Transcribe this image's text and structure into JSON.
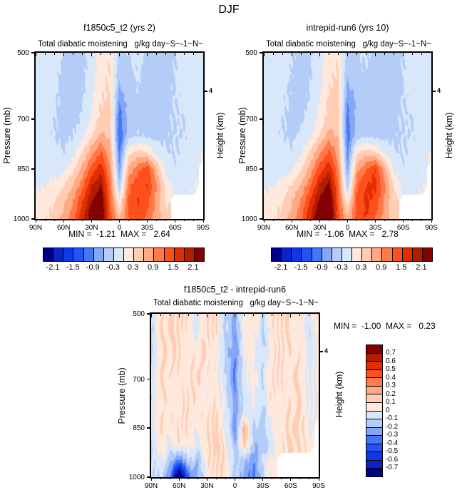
{
  "page": {
    "title": "DJF"
  },
  "palette": [
    "#000087",
    "#0b24c8",
    "#1038e8",
    "#2253f5",
    "#4476f8",
    "#84a6f8",
    "#b4ccf8",
    "#d8e8fa",
    "#ffe9dc",
    "#ffcdb4",
    "#ffaa84",
    "#ff7a48",
    "#ff4f1a",
    "#e22d00",
    "#b21e00",
    "#850000"
  ],
  "chart_data": [
    {
      "id": "a",
      "type": "heatmap",
      "title": "f1850c5_t2 (yrs 2)",
      "subtitle_left": "Total diabatic moistening",
      "subtitle_right": "g/kg day~S~-1~N~",
      "stats": "MIN =  -1.21  MAX =   2.64",
      "ylabel": "Pressure (mb)",
      "ylabel_right": "Height (km)",
      "height_tick_label": "4",
      "height_tick_pressure": 616,
      "x_tick_labels": [
        "90N",
        "60N",
        "30N",
        "0",
        "30S",
        "60S",
        "90S"
      ],
      "x_major_deg": [
        90,
        60,
        30,
        0,
        -30,
        -60,
        -90
      ],
      "x_minor_step_deg": 10,
      "y_tick_labels": [
        "500",
        "700",
        "850",
        "1000"
      ],
      "y_tick_values": [
        500,
        700,
        850,
        1000
      ],
      "x_range": [
        90,
        -90
      ],
      "y_range": [
        500,
        1000
      ],
      "contour": {
        "min": -2.1,
        "max": 2.1,
        "step": 0.3
      },
      "colorbar_labels": [
        "-2.1",
        "-1.5",
        "-0.9",
        "-0.3",
        "0.3",
        "0.9",
        "1.5",
        "2.1"
      ],
      "lats": [
        90,
        80,
        70,
        60,
        50,
        40,
        30,
        20,
        10,
        0,
        -10,
        -20,
        -30,
        -40,
        -50,
        -60,
        -70,
        -80,
        -90
      ],
      "levels": [
        500,
        550,
        600,
        650,
        700,
        750,
        800,
        850,
        900,
        950,
        1000
      ],
      "values": [
        [
          -0.15,
          -0.2,
          -0.2,
          -0.3,
          -0.5,
          -0.4,
          -0.15,
          0.2,
          0.25,
          -0.45,
          -0.3,
          -0.2,
          -0.35,
          -0.5,
          -0.5,
          -0.3,
          -0.15,
          -0.1,
          -0.1
        ],
        [
          -0.15,
          -0.2,
          -0.2,
          -0.35,
          -0.5,
          -0.4,
          -0.15,
          0.2,
          0.3,
          -0.5,
          -0.35,
          -0.25,
          -0.4,
          -0.55,
          -0.5,
          -0.3,
          -0.2,
          -0.1,
          -0.1
        ],
        [
          -0.15,
          -0.2,
          -0.25,
          -0.4,
          -0.5,
          -0.35,
          -0.1,
          0.25,
          0.3,
          -0.6,
          -0.4,
          -0.3,
          -0.45,
          -0.5,
          -0.4,
          -0.3,
          -0.2,
          -0.15,
          -0.1
        ],
        [
          -0.15,
          -0.2,
          -0.25,
          -0.4,
          -0.45,
          -0.3,
          -0.05,
          0.3,
          0.35,
          -0.9,
          -0.45,
          -0.35,
          -0.5,
          -0.45,
          -0.35,
          -0.3,
          -0.25,
          -0.15,
          -0.1
        ],
        [
          -0.15,
          -0.2,
          -0.3,
          -0.45,
          -0.4,
          -0.25,
          0.05,
          0.4,
          0.4,
          -1.1,
          -0.5,
          -0.4,
          -0.45,
          -0.4,
          -0.35,
          -0.3,
          -0.3,
          -0.15,
          -0.1
        ],
        [
          -0.15,
          -0.2,
          -0.3,
          -0.4,
          -0.3,
          -0.1,
          0.3,
          0.7,
          0.5,
          -1.2,
          -0.4,
          -0.3,
          -0.35,
          -0.4,
          -0.35,
          -0.3,
          -0.3,
          -0.15,
          -0.05
        ],
        [
          -0.1,
          -0.15,
          -0.25,
          -0.3,
          -0.1,
          0.3,
          0.8,
          1.2,
          0.7,
          -1.0,
          0.2,
          0.4,
          0.3,
          -0.1,
          -0.3,
          -0.3,
          -0.25,
          -0.1,
          0.0
        ],
        [
          -0.1,
          -0.1,
          -0.15,
          -0.1,
          0.2,
          0.7,
          1.3,
          1.7,
          0.9,
          -0.8,
          0.7,
          1.1,
          1.4,
          0.6,
          -0.1,
          -0.25,
          -0.2,
          -0.05,
          null
        ],
        [
          -0.05,
          0.0,
          0.1,
          0.3,
          0.6,
          1.1,
          1.8,
          2.1,
          1.1,
          -0.5,
          1.1,
          1.4,
          1.5,
          0.9,
          0.2,
          -0.15,
          -0.1,
          0.0,
          null
        ],
        [
          0.05,
          0.15,
          0.3,
          0.55,
          0.9,
          1.5,
          2.1,
          2.4,
          1.2,
          0.1,
          1.3,
          1.5,
          1.3,
          0.8,
          0.3,
          null,
          null,
          null,
          null
        ],
        [
          0.1,
          0.25,
          0.45,
          0.7,
          1.1,
          1.7,
          2.4,
          2.6,
          1.3,
          0.6,
          1.2,
          1.4,
          1.1,
          0.7,
          0.4,
          null,
          null,
          null,
          null
        ]
      ]
    },
    {
      "id": "b",
      "type": "heatmap",
      "title": "intrepid-run6 (yrs 10)",
      "subtitle_left": "Total diabatic moistening",
      "subtitle_right": "g/kg day~S~-1~N~",
      "stats": "MIN =  -1.06  MAX =   2.78",
      "ylabel": "Pressure (mb)",
      "ylabel_right": "Height (km)",
      "height_tick_label": "4",
      "height_tick_pressure": 616,
      "x_tick_labels": [
        "90N",
        "60N",
        "30N",
        "0",
        "30S",
        "60S",
        "90S"
      ],
      "x_major_deg": [
        90,
        60,
        30,
        0,
        -30,
        -60,
        -90
      ],
      "x_minor_step_deg": 10,
      "y_tick_labels": [
        "500",
        "700",
        "850",
        "1000"
      ],
      "y_tick_values": [
        500,
        700,
        850,
        1000
      ],
      "x_range": [
        90,
        -90
      ],
      "y_range": [
        500,
        1000
      ],
      "contour": {
        "min": -2.1,
        "max": 2.1,
        "step": 0.3
      },
      "colorbar_labels": [
        "-2.1",
        "-1.5",
        "-0.9",
        "-0.3",
        "0.3",
        "0.9",
        "1.5",
        "2.1"
      ],
      "lats": [
        90,
        80,
        70,
        60,
        50,
        40,
        30,
        20,
        10,
        0,
        -10,
        -20,
        -30,
        -40,
        -50,
        -60,
        -70,
        -80,
        -90
      ],
      "levels": [
        500,
        550,
        600,
        650,
        700,
        750,
        800,
        850,
        900,
        950,
        1000
      ],
      "values": [
        [
          -0.15,
          -0.2,
          -0.2,
          -0.25,
          -0.45,
          -0.35,
          -0.1,
          0.2,
          0.25,
          -0.5,
          -0.35,
          -0.25,
          -0.4,
          -0.5,
          -0.45,
          -0.3,
          -0.15,
          -0.1,
          -0.1
        ],
        [
          -0.15,
          -0.2,
          -0.2,
          -0.3,
          -0.45,
          -0.35,
          -0.1,
          0.25,
          0.3,
          -0.55,
          -0.4,
          -0.3,
          -0.45,
          -0.55,
          -0.5,
          -0.3,
          -0.2,
          -0.1,
          -0.1
        ],
        [
          -0.15,
          -0.2,
          -0.25,
          -0.35,
          -0.45,
          -0.3,
          -0.05,
          0.3,
          0.35,
          -0.65,
          -0.45,
          -0.35,
          -0.5,
          -0.55,
          -0.45,
          -0.3,
          -0.2,
          -0.15,
          -0.1
        ],
        [
          -0.15,
          -0.2,
          -0.25,
          -0.35,
          -0.4,
          -0.25,
          0.0,
          0.35,
          0.4,
          -0.9,
          -0.5,
          -0.4,
          -0.5,
          -0.5,
          -0.4,
          -0.3,
          -0.25,
          -0.15,
          -0.1
        ],
        [
          -0.15,
          -0.2,
          -0.3,
          -0.4,
          -0.35,
          -0.2,
          0.1,
          0.45,
          0.45,
          -1.05,
          -0.5,
          -0.45,
          -0.5,
          -0.45,
          -0.35,
          -0.3,
          -0.3,
          -0.15,
          -0.1
        ],
        [
          -0.15,
          -0.2,
          -0.3,
          -0.35,
          -0.25,
          -0.05,
          0.35,
          0.75,
          0.55,
          -1.05,
          -0.45,
          -0.35,
          -0.4,
          -0.4,
          -0.35,
          -0.3,
          -0.3,
          -0.15,
          -0.05
        ],
        [
          -0.1,
          -0.15,
          -0.25,
          -0.25,
          -0.05,
          0.35,
          0.85,
          1.25,
          0.75,
          -0.95,
          0.25,
          0.45,
          0.35,
          -0.05,
          -0.3,
          -0.3,
          -0.25,
          -0.1,
          0.0
        ],
        [
          -0.1,
          -0.1,
          -0.15,
          -0.05,
          0.25,
          0.75,
          1.35,
          1.75,
          0.95,
          -0.75,
          0.75,
          1.15,
          1.5,
          0.7,
          -0.05,
          -0.25,
          -0.2,
          -0.05,
          null
        ],
        [
          -0.05,
          0.0,
          0.1,
          0.35,
          0.65,
          1.15,
          1.85,
          2.2,
          1.15,
          -0.45,
          1.15,
          1.5,
          1.6,
          0.95,
          0.25,
          -0.1,
          -0.1,
          0.0,
          null
        ],
        [
          0.05,
          0.15,
          0.3,
          0.6,
          0.95,
          1.55,
          2.2,
          2.5,
          1.25,
          0.15,
          1.35,
          1.6,
          1.4,
          0.85,
          0.35,
          null,
          null,
          null,
          null
        ],
        [
          0.1,
          0.25,
          0.45,
          0.75,
          1.15,
          1.8,
          2.5,
          2.75,
          1.35,
          0.65,
          1.3,
          1.5,
          1.2,
          0.75,
          0.4,
          null,
          null,
          null,
          null
        ]
      ]
    },
    {
      "id": "c",
      "type": "heatmap",
      "title": "f1850c5_t2 - intrepid-run6",
      "subtitle_left": "Total diabatic moistening",
      "subtitle_right": "g/kg day~S~-1~N~",
      "stats": "MIN =  -1.00  MAX =   0.23",
      "ylabel": "Pressure (mb)",
      "ylabel_right": "Height (km)",
      "height_tick_label": "4",
      "height_tick_pressure": 616,
      "x_tick_labels": [
        "90N",
        "60N",
        "30N",
        "0",
        "30S",
        "60S",
        "90S"
      ],
      "x_major_deg": [
        90,
        60,
        30,
        0,
        -30,
        -60,
        -90
      ],
      "x_minor_step_deg": 10,
      "y_tick_labels": [
        "500",
        "700",
        "850",
        "1000"
      ],
      "y_tick_values": [
        500,
        700,
        850,
        1000
      ],
      "x_range": [
        90,
        -90
      ],
      "y_range": [
        500,
        1000
      ],
      "contour": {
        "min": -0.7,
        "max": 0.7,
        "step": 0.1
      },
      "colorbar_labels": [
        "0.7",
        "0.6",
        "0.5",
        "0.4",
        "0.3",
        "0.2",
        "0.1",
        "0",
        "-0.1",
        "-0.2",
        "-0.3",
        "-0.4",
        "-0.5",
        "-0.6",
        "-0.7"
      ],
      "lats": [
        90,
        80,
        70,
        60,
        50,
        40,
        30,
        20,
        10,
        0,
        -10,
        -20,
        -30,
        -40,
        -50,
        -60,
        -70,
        -80,
        -90
      ],
      "levels": [
        500,
        550,
        600,
        650,
        700,
        750,
        800,
        850,
        900,
        950,
        1000
      ],
      "values": [
        [
          -0.12,
          0.08,
          0.1,
          0.12,
          0.08,
          -0.05,
          0.1,
          0.1,
          -0.12,
          -0.22,
          0.05,
          0.1,
          -0.08,
          0.08,
          0.12,
          0.1,
          0.05,
          -0.05,
          0.08
        ],
        [
          -0.12,
          0.1,
          0.12,
          0.1,
          0.05,
          -0.05,
          0.1,
          0.08,
          -0.1,
          -0.25,
          0.05,
          0.05,
          -0.1,
          0.05,
          0.1,
          0.1,
          0.05,
          -0.08,
          0.08
        ],
        [
          -0.1,
          0.08,
          0.1,
          0.1,
          0.02,
          0.08,
          0.1,
          0.05,
          -0.12,
          -0.3,
          0.02,
          0.05,
          -0.12,
          0.05,
          0.1,
          0.08,
          0.08,
          -0.08,
          0.05
        ],
        [
          -0.1,
          0.08,
          0.1,
          0.08,
          0.05,
          0.1,
          0.08,
          0.02,
          -0.1,
          -0.32,
          0.0,
          0.02,
          -0.1,
          0.08,
          0.1,
          0.05,
          0.1,
          -0.05,
          0.05
        ],
        [
          -0.08,
          0.1,
          0.08,
          0.05,
          0.08,
          0.1,
          0.05,
          0.05,
          -0.1,
          -0.3,
          -0.02,
          0.05,
          -0.08,
          0.1,
          0.08,
          0.08,
          0.1,
          -0.05,
          0.05
        ],
        [
          -0.08,
          0.1,
          0.05,
          0.05,
          0.1,
          0.08,
          0.02,
          0.08,
          -0.05,
          -0.28,
          -0.05,
          0.0,
          -0.08,
          0.1,
          0.05,
          0.08,
          0.1,
          -0.02,
          0.0
        ],
        [
          -0.05,
          0.1,
          0.05,
          0.08,
          0.1,
          0.05,
          0.08,
          0.1,
          -0.02,
          -0.25,
          -0.08,
          -0.02,
          -0.12,
          0.05,
          0.05,
          0.1,
          0.12,
          0.0,
          0.0
        ],
        [
          -0.05,
          0.08,
          0.05,
          0.1,
          0.08,
          0.02,
          0.1,
          0.12,
          0.02,
          -0.3,
          0.22,
          -0.12,
          -0.15,
          0.0,
          0.08,
          0.1,
          0.12,
          0.0,
          null
        ],
        [
          -0.1,
          0.05,
          0.0,
          0.08,
          0.05,
          -0.02,
          0.1,
          0.15,
          0.05,
          -0.22,
          0.18,
          -0.15,
          -0.2,
          -0.05,
          0.08,
          0.12,
          0.1,
          0.05,
          null
        ],
        [
          -0.1,
          0.0,
          -0.15,
          -0.35,
          -0.1,
          -0.18,
          0.08,
          0.12,
          0.08,
          -0.12,
          -0.15,
          -0.3,
          -0.08,
          0.05,
          null,
          null,
          null,
          null,
          null
        ],
        [
          -0.12,
          -0.08,
          -0.3,
          -1.0,
          -0.35,
          -0.22,
          0.02,
          0.1,
          0.08,
          -0.1,
          -0.25,
          -0.35,
          -0.1,
          0.05,
          null,
          null,
          null,
          null,
          null
        ]
      ]
    }
  ]
}
